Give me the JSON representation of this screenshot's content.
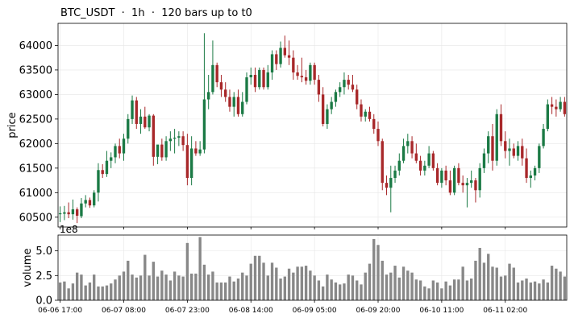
{
  "chart_data": [
    {
      "type": "candlestick",
      "title": "BTC_USDT  ·  1h  ·  120 bars up to t0",
      "ylabel": "price",
      "ylim": [
        60300,
        64450
      ],
      "yticks": [
        60500,
        61000,
        61500,
        62000,
        62500,
        63000,
        63500,
        64000
      ],
      "grid": true,
      "up_color": "#1b7a45",
      "down_color": "#a8282a",
      "bars": [
        {
          "o": 60560,
          "h": 60720,
          "l": 60400,
          "c": 60580
        },
        {
          "o": 60570,
          "h": 60730,
          "l": 60440,
          "c": 60600
        },
        {
          "o": 60600,
          "h": 60800,
          "l": 60480,
          "c": 60560
        },
        {
          "o": 60560,
          "h": 60860,
          "l": 60450,
          "c": 60660
        },
        {
          "o": 60660,
          "h": 60700,
          "l": 60380,
          "c": 60530
        },
        {
          "o": 60520,
          "h": 60890,
          "l": 60480,
          "c": 60780
        },
        {
          "o": 60780,
          "h": 60950,
          "l": 60700,
          "c": 60850
        },
        {
          "o": 60850,
          "h": 60900,
          "l": 60690,
          "c": 60740
        },
        {
          "o": 60740,
          "h": 61050,
          "l": 60700,
          "c": 61000
        },
        {
          "o": 61000,
          "h": 61600,
          "l": 60820,
          "c": 61460
        },
        {
          "o": 61460,
          "h": 61580,
          "l": 61300,
          "c": 61380
        },
        {
          "o": 61380,
          "h": 61850,
          "l": 61320,
          "c": 61650
        },
        {
          "o": 61650,
          "h": 61820,
          "l": 61500,
          "c": 61720
        },
        {
          "o": 61720,
          "h": 62000,
          "l": 61600,
          "c": 61950
        },
        {
          "o": 61950,
          "h": 62100,
          "l": 61700,
          "c": 61800
        },
        {
          "o": 61800,
          "h": 62200,
          "l": 61650,
          "c": 62100
        },
        {
          "o": 62100,
          "h": 62600,
          "l": 62000,
          "c": 62500
        },
        {
          "o": 62500,
          "h": 62980,
          "l": 62400,
          "c": 62880
        },
        {
          "o": 62880,
          "h": 62950,
          "l": 62300,
          "c": 62400
        },
        {
          "o": 62400,
          "h": 62700,
          "l": 62200,
          "c": 62550
        },
        {
          "o": 62550,
          "h": 62750,
          "l": 62300,
          "c": 62330
        },
        {
          "o": 62330,
          "h": 62600,
          "l": 62250,
          "c": 62570
        },
        {
          "o": 62570,
          "h": 62600,
          "l": 61550,
          "c": 61730
        },
        {
          "o": 61730,
          "h": 61950,
          "l": 61580,
          "c": 61980
        },
        {
          "o": 61980,
          "h": 62100,
          "l": 61650,
          "c": 61720
        },
        {
          "o": 61720,
          "h": 62150,
          "l": 61650,
          "c": 62050
        },
        {
          "o": 62050,
          "h": 62250,
          "l": 61850,
          "c": 62100
        },
        {
          "o": 62100,
          "h": 62300,
          "l": 61800,
          "c": 62120
        },
        {
          "o": 62120,
          "h": 62250,
          "l": 61950,
          "c": 62150
        },
        {
          "o": 62150,
          "h": 62250,
          "l": 61850,
          "c": 61970
        },
        {
          "o": 61970,
          "h": 62200,
          "l": 61150,
          "c": 61300
        },
        {
          "o": 61300,
          "h": 62150,
          "l": 61150,
          "c": 61900
        },
        {
          "o": 61900,
          "h": 62050,
          "l": 61750,
          "c": 61800
        },
        {
          "o": 61800,
          "h": 62050,
          "l": 61750,
          "c": 61880
        },
        {
          "o": 61880,
          "h": 64250,
          "l": 61800,
          "c": 62900
        },
        {
          "o": 62900,
          "h": 63400,
          "l": 62700,
          "c": 63050
        },
        {
          "o": 63050,
          "h": 64100,
          "l": 63000,
          "c": 63600
        },
        {
          "o": 63600,
          "h": 63650,
          "l": 63150,
          "c": 63250
        },
        {
          "o": 63250,
          "h": 63400,
          "l": 62950,
          "c": 63100
        },
        {
          "o": 63100,
          "h": 63250,
          "l": 62850,
          "c": 62950
        },
        {
          "o": 62950,
          "h": 63100,
          "l": 62650,
          "c": 62750
        },
        {
          "o": 62750,
          "h": 63050,
          "l": 62550,
          "c": 62950
        },
        {
          "o": 62950,
          "h": 63100,
          "l": 62550,
          "c": 62600
        },
        {
          "o": 62600,
          "h": 63050,
          "l": 62550,
          "c": 62850
        },
        {
          "o": 62850,
          "h": 63450,
          "l": 62800,
          "c": 63350
        },
        {
          "o": 63350,
          "h": 63550,
          "l": 63200,
          "c": 63400
        },
        {
          "o": 63400,
          "h": 63550,
          "l": 63050,
          "c": 63150
        },
        {
          "o": 63150,
          "h": 63550,
          "l": 63100,
          "c": 63500
        },
        {
          "o": 63500,
          "h": 63550,
          "l": 63100,
          "c": 63150
        },
        {
          "o": 63150,
          "h": 63600,
          "l": 63100,
          "c": 63450
        },
        {
          "o": 63450,
          "h": 63900,
          "l": 63300,
          "c": 63820
        },
        {
          "o": 63820,
          "h": 63900,
          "l": 63500,
          "c": 63620
        },
        {
          "o": 63620,
          "h": 64080,
          "l": 63550,
          "c": 63950
        },
        {
          "o": 63950,
          "h": 64200,
          "l": 63750,
          "c": 63800
        },
        {
          "o": 63800,
          "h": 64100,
          "l": 63600,
          "c": 63750
        },
        {
          "o": 63750,
          "h": 63900,
          "l": 63300,
          "c": 63450
        },
        {
          "o": 63450,
          "h": 63600,
          "l": 63300,
          "c": 63380
        },
        {
          "o": 63380,
          "h": 63750,
          "l": 63250,
          "c": 63350
        },
        {
          "o": 63350,
          "h": 63500,
          "l": 63200,
          "c": 63280
        },
        {
          "o": 63280,
          "h": 63650,
          "l": 63200,
          "c": 63600
        },
        {
          "o": 63600,
          "h": 63650,
          "l": 63200,
          "c": 63300
        },
        {
          "o": 63300,
          "h": 63400,
          "l": 62850,
          "c": 63000
        },
        {
          "o": 63000,
          "h": 63150,
          "l": 62350,
          "c": 62400
        },
        {
          "o": 62400,
          "h": 62800,
          "l": 62300,
          "c": 62700
        },
        {
          "o": 62700,
          "h": 62950,
          "l": 62600,
          "c": 62850
        },
        {
          "o": 62850,
          "h": 63100,
          "l": 62750,
          "c": 63050
        },
        {
          "o": 63050,
          "h": 63250,
          "l": 62950,
          "c": 63150
        },
        {
          "o": 63150,
          "h": 63450,
          "l": 63000,
          "c": 63300
        },
        {
          "o": 63300,
          "h": 63400,
          "l": 63100,
          "c": 63200
        },
        {
          "o": 63200,
          "h": 63400,
          "l": 63050,
          "c": 63100
        },
        {
          "o": 63100,
          "h": 63200,
          "l": 62700,
          "c": 62800
        },
        {
          "o": 62800,
          "h": 62900,
          "l": 62450,
          "c": 62550
        },
        {
          "o": 62550,
          "h": 62700,
          "l": 62450,
          "c": 62650
        },
        {
          "o": 62650,
          "h": 62750,
          "l": 62450,
          "c": 62500
        },
        {
          "o": 62500,
          "h": 62600,
          "l": 62200,
          "c": 62300
        },
        {
          "o": 62300,
          "h": 62450,
          "l": 61950,
          "c": 62050
        },
        {
          "o": 62050,
          "h": 62100,
          "l": 61050,
          "c": 61200
        },
        {
          "o": 61200,
          "h": 61350,
          "l": 60950,
          "c": 61100
        },
        {
          "o": 61100,
          "h": 61550,
          "l": 60600,
          "c": 61300
        },
        {
          "o": 61300,
          "h": 61550,
          "l": 61200,
          "c": 61450
        },
        {
          "o": 61450,
          "h": 61800,
          "l": 61350,
          "c": 61650
        },
        {
          "o": 61650,
          "h": 62100,
          "l": 61600,
          "c": 61950
        },
        {
          "o": 61950,
          "h": 62200,
          "l": 61800,
          "c": 62050
        },
        {
          "o": 62050,
          "h": 62150,
          "l": 61700,
          "c": 61800
        },
        {
          "o": 61800,
          "h": 62000,
          "l": 61600,
          "c": 61650
        },
        {
          "o": 61650,
          "h": 61750,
          "l": 61350,
          "c": 61450
        },
        {
          "o": 61450,
          "h": 61650,
          "l": 61350,
          "c": 61550
        },
        {
          "o": 61550,
          "h": 61950,
          "l": 61500,
          "c": 61800
        },
        {
          "o": 61800,
          "h": 61850,
          "l": 61450,
          "c": 61500
        },
        {
          "o": 61500,
          "h": 61600,
          "l": 61150,
          "c": 61200
        },
        {
          "o": 61200,
          "h": 61500,
          "l": 61100,
          "c": 61450
        },
        {
          "o": 61450,
          "h": 61550,
          "l": 61150,
          "c": 61250
        },
        {
          "o": 61250,
          "h": 61450,
          "l": 60950,
          "c": 61000
        },
        {
          "o": 61000,
          "h": 61550,
          "l": 60950,
          "c": 61500
        },
        {
          "o": 61500,
          "h": 61600,
          "l": 61150,
          "c": 61200
        },
        {
          "o": 61200,
          "h": 61350,
          "l": 61000,
          "c": 61150
        },
        {
          "o": 61150,
          "h": 61300,
          "l": 60700,
          "c": 61200
        },
        {
          "o": 61200,
          "h": 61450,
          "l": 61100,
          "c": 61250
        },
        {
          "o": 61250,
          "h": 61300,
          "l": 60800,
          "c": 61050
        },
        {
          "o": 61050,
          "h": 61600,
          "l": 60900,
          "c": 61500
        },
        {
          "o": 61500,
          "h": 61900,
          "l": 61400,
          "c": 61800
        },
        {
          "o": 61800,
          "h": 62250,
          "l": 61600,
          "c": 62150
        },
        {
          "o": 62150,
          "h": 62400,
          "l": 61450,
          "c": 61650
        },
        {
          "o": 61650,
          "h": 62700,
          "l": 61550,
          "c": 62600
        },
        {
          "o": 62600,
          "h": 62800,
          "l": 61950,
          "c": 62050
        },
        {
          "o": 62050,
          "h": 62250,
          "l": 61700,
          "c": 61850
        },
        {
          "o": 61850,
          "h": 62100,
          "l": 61550,
          "c": 61900
        },
        {
          "o": 61900,
          "h": 62000,
          "l": 61700,
          "c": 61750
        },
        {
          "o": 61750,
          "h": 62050,
          "l": 61650,
          "c": 61950
        },
        {
          "o": 61950,
          "h": 62100,
          "l": 61550,
          "c": 61700
        },
        {
          "o": 61700,
          "h": 61900,
          "l": 61200,
          "c": 61300
        },
        {
          "o": 61300,
          "h": 61450,
          "l": 61100,
          "c": 61350
        },
        {
          "o": 61350,
          "h": 61550,
          "l": 61250,
          "c": 61500
        },
        {
          "o": 61500,
          "h": 62000,
          "l": 61400,
          "c": 61950
        },
        {
          "o": 61950,
          "h": 62400,
          "l": 61900,
          "c": 62300
        },
        {
          "o": 62300,
          "h": 62900,
          "l": 62250,
          "c": 62800
        },
        {
          "o": 62800,
          "h": 62950,
          "l": 62600,
          "c": 62750
        },
        {
          "o": 62750,
          "h": 62900,
          "l": 62550,
          "c": 62700
        },
        {
          "o": 62700,
          "h": 62950,
          "l": 62650,
          "c": 62850
        },
        {
          "o": 62850,
          "h": 62950,
          "l": 62550,
          "c": 62600
        }
      ]
    },
    {
      "type": "bar",
      "ylabel": "volume",
      "exponent_label": "1e8",
      "ylim": [
        0,
        6.6
      ],
      "yticks": [
        "0.0",
        "2.5",
        "5.0"
      ],
      "ytick_values": [
        0,
        2.5,
        5.0
      ],
      "color": "#888888",
      "x_tick_labels": [
        "06-06 17:00",
        "06-07 08:00",
        "06-07 23:00",
        "06-08 14:00",
        "06-09 05:00",
        "06-09 20:00",
        "06-10 11:00",
        "06-11 02:00"
      ],
      "x_tick_bars": [
        0,
        15,
        30,
        45,
        60,
        75,
        90,
        105
      ],
      "values": [
        1.8,
        1.9,
        1.2,
        1.7,
        2.8,
        2.6,
        1.5,
        1.8,
        2.6,
        1.4,
        1.4,
        1.5,
        1.7,
        2.1,
        2.5,
        2.9,
        4.0,
        2.6,
        2.3,
        2.5,
        4.6,
        2.5,
        3.9,
        2.4,
        3.0,
        2.6,
        2.0,
        2.9,
        2.5,
        2.4,
        5.8,
        2.7,
        2.7,
        6.4,
        3.6,
        2.6,
        2.9,
        1.8,
        1.8,
        1.8,
        2.4,
        1.9,
        2.2,
        2.8,
        2.5,
        3.7,
        4.5,
        4.5,
        3.8,
        2.5,
        3.8,
        3.3,
        2.2,
        2.4,
        3.2,
        2.8,
        3.4,
        3.4,
        3.5,
        3.0,
        2.5,
        2.0,
        1.4,
        2.6,
        2.1,
        1.8,
        1.6,
        1.7,
        2.6,
        2.5,
        2.0,
        1.6,
        2.8,
        3.7,
        6.2,
        5.6,
        4.0,
        2.6,
        2.8,
        3.5,
        2.3,
        3.4,
        3.0,
        2.8,
        2.1,
        2.0,
        1.4,
        1.2,
        2.0,
        1.8,
        1.2,
        1.9,
        1.5,
        2.1,
        2.1,
        3.4,
        2.0,
        2.2,
        4.0,
        5.3,
        3.8,
        4.7,
        3.4,
        3.3,
        2.4,
        2.5,
        3.7,
        3.3,
        1.8,
        2.0,
        2.2,
        1.8,
        1.9,
        1.7,
        2.1,
        1.8,
        3.5,
        3.2,
        2.9,
        2.4
      ]
    }
  ]
}
